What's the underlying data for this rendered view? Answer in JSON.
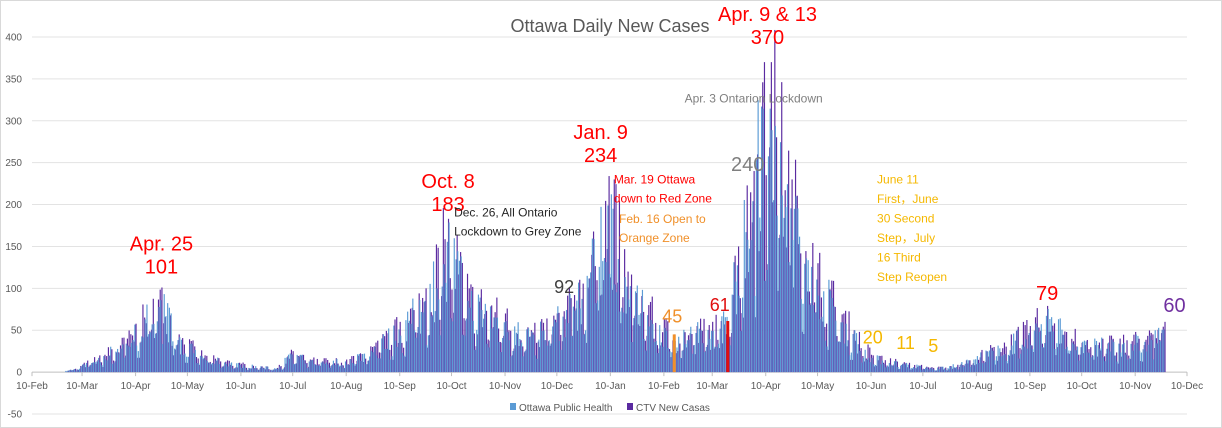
{
  "chart_data": {
    "type": "bar",
    "title": "Ottawa Daily New Cases",
    "ylim": [
      -50,
      400
    ],
    "yticks": [
      -50,
      0,
      50,
      100,
      150,
      200,
      250,
      300,
      350,
      400
    ],
    "xlim": [
      "2020-02-10",
      "2021-12-10"
    ],
    "xtick_labels": [
      "10-Feb",
      "10-Mar",
      "10-Apr",
      "10-May",
      "10-Jun",
      "10-Jul",
      "10-Aug",
      "10-Sep",
      "10-Oct",
      "10-Nov",
      "10-Dec",
      "10-Jan",
      "10-Feb",
      "10-Mar",
      "10-Apr",
      "10-May",
      "10-Jun",
      "10-Jul",
      "10-Aug",
      "10-Sep",
      "10-Oct",
      "10-Nov",
      "10-Dec"
    ],
    "grid": true,
    "legend_position": "bottom",
    "series": [
      {
        "name": "Ottawa Public Health",
        "color": "#5b9bd5"
      },
      {
        "name": "CTV New Casas",
        "color": "#5a2aa0"
      }
    ],
    "anchor_points": [
      {
        "date": "2020-02-10",
        "y": 0
      },
      {
        "date": "2020-03-05",
        "y": 3
      },
      {
        "date": "2020-03-20",
        "y": 20
      },
      {
        "date": "2020-04-05",
        "y": 40
      },
      {
        "date": "2020-04-25",
        "y": 101
      },
      {
        "date": "2020-05-05",
        "y": 45
      },
      {
        "date": "2020-05-20",
        "y": 20
      },
      {
        "date": "2020-06-10",
        "y": 10
      },
      {
        "date": "2020-07-01",
        "y": 5
      },
      {
        "date": "2020-07-10",
        "y": 25
      },
      {
        "date": "2020-07-20",
        "y": 15
      },
      {
        "date": "2020-08-10",
        "y": 15
      },
      {
        "date": "2020-08-25",
        "y": 30
      },
      {
        "date": "2020-09-10",
        "y": 60
      },
      {
        "date": "2020-09-25",
        "y": 100
      },
      {
        "date": "2020-10-08",
        "y": 183
      },
      {
        "date": "2020-10-20",
        "y": 100
      },
      {
        "date": "2020-11-10",
        "y": 70
      },
      {
        "date": "2020-11-25",
        "y": 50
      },
      {
        "date": "2020-12-10",
        "y": 70
      },
      {
        "date": "2020-12-20",
        "y": 92
      },
      {
        "date": "2020-12-30",
        "y": 140
      },
      {
        "date": "2021-01-09",
        "y": 234
      },
      {
        "date": "2021-01-20",
        "y": 120
      },
      {
        "date": "2021-02-01",
        "y": 80
      },
      {
        "date": "2021-02-16",
        "y": 45
      },
      {
        "date": "2021-03-01",
        "y": 55
      },
      {
        "date": "2021-03-15",
        "y": 61
      },
      {
        "date": "2021-03-25",
        "y": 150
      },
      {
        "date": "2021-04-03",
        "y": 240
      },
      {
        "date": "2021-04-09",
        "y": 370
      },
      {
        "date": "2021-04-13",
        "y": 370
      },
      {
        "date": "2021-04-25",
        "y": 230
      },
      {
        "date": "2021-05-10",
        "y": 130
      },
      {
        "date": "2021-05-25",
        "y": 70
      },
      {
        "date": "2021-06-11",
        "y": 20
      },
      {
        "date": "2021-06-30",
        "y": 11
      },
      {
        "date": "2021-07-16",
        "y": 5
      },
      {
        "date": "2021-08-01",
        "y": 10
      },
      {
        "date": "2021-08-20",
        "y": 30
      },
      {
        "date": "2021-09-10",
        "y": 55
      },
      {
        "date": "2021-09-20",
        "y": 79
      },
      {
        "date": "2021-10-10",
        "y": 35
      },
      {
        "date": "2021-11-01",
        "y": 40
      },
      {
        "date": "2021-11-20",
        "y": 45
      },
      {
        "date": "2021-11-27",
        "y": 60
      }
    ],
    "highlight_bars": [
      {
        "date": "2021-02-16",
        "y": 45,
        "color": "#f0902a"
      },
      {
        "date": "2021-03-19",
        "y": 61,
        "color": "#e01010"
      }
    ],
    "annotations": [
      {
        "lines": [
          "Apr. 25",
          "101"
        ],
        "date": "2020-04-25",
        "y": 101,
        "color": "#ff0000",
        "size": 20,
        "align": "middle",
        "dy": -14
      },
      {
        "lines": [
          "Oct. 8",
          "183"
        ],
        "date": "2020-10-08",
        "y": 183,
        "color": "#ff0000",
        "size": 20,
        "align": "middle",
        "dy": -8
      },
      {
        "lines": [
          "Dec. 26, All Ontario",
          "Lockdown to Grey Zone"
        ],
        "date": "2020-10-08",
        "y": 188,
        "color": "#262626",
        "size": 12,
        "align": "start",
        "dx": 6,
        "dy": 2
      },
      {
        "lines": [
          "92"
        ],
        "date": "2020-12-20",
        "y": 92,
        "color": "#404040",
        "size": 18,
        "align": "middle",
        "dx": -10,
        "dy": -2
      },
      {
        "lines": [
          "Jan. 9",
          "234"
        ],
        "date": "2021-01-09",
        "y": 234,
        "color": "#ff0000",
        "size": 20,
        "align": "middle",
        "dx": -8,
        "dy": -14
      },
      {
        "lines": [
          "Mar. 19 Ottawa",
          "down to Red Zone"
        ],
        "date": "2021-01-12",
        "y": 225,
        "color": "#ff0000",
        "size": 12,
        "align": "start",
        "dx": 0,
        "dy": 0
      },
      {
        "lines": [
          "Feb. 16 Open to",
          "Orange Zone"
        ],
        "date": "2021-01-15",
        "y": 178,
        "color": "#f0902a",
        "size": 12,
        "align": "start",
        "dx": 0,
        "dy": 0
      },
      {
        "lines": [
          "45"
        ],
        "date": "2021-02-16",
        "y": 45,
        "color": "#f0902a",
        "size": 18,
        "align": "middle",
        "dx": -2,
        "dy": -12
      },
      {
        "lines": [
          "61"
        ],
        "date": "2021-03-19",
        "y": 61,
        "color": "#e01010",
        "size": 18,
        "align": "middle",
        "dx": -8,
        "dy": -10
      },
      {
        "lines": [
          "240"
        ],
        "date": "2021-04-03",
        "y": 240,
        "color": "#7f7f7f",
        "size": 20,
        "align": "middle",
        "dx": -6,
        "dy": 0
      },
      {
        "lines": [
          "Apr. 3 Ontarion Lockdown"
        ],
        "date": "2021-04-03",
        "y": 322,
        "color": "#7f7f7f",
        "size": 12,
        "align": "middle",
        "dx": 0,
        "dy": 0
      },
      {
        "lines": [
          "Apr. 9 & 13",
          "370"
        ],
        "date": "2021-04-11",
        "y": 370,
        "color": "#ff0000",
        "size": 20,
        "align": "middle",
        "dx": 0,
        "dy": -18
      },
      {
        "lines": [
          "June 11",
          "First，June",
          "30 Second",
          "Step，July",
          "16 Third",
          "Step Reopen"
        ],
        "date": "2021-06-10",
        "y": 225,
        "color": "#f5b800",
        "size": 12,
        "align": "start",
        "dx": 6,
        "dy": 0,
        "line_gap": 19.5
      },
      {
        "lines": [
          "20"
        ],
        "date": "2021-06-11",
        "y": 20,
        "color": "#f5b800",
        "size": 18,
        "align": "middle",
        "dx": 0,
        "dy": -12
      },
      {
        "lines": [
          "11"
        ],
        "date": "2021-06-30",
        "y": 11,
        "color": "#f5b800",
        "size": 18,
        "align": "middle",
        "dx": 0,
        "dy": -14
      },
      {
        "lines": [
          "5"
        ],
        "date": "2021-07-16",
        "y": 5,
        "color": "#f5b800",
        "size": 18,
        "align": "middle",
        "dx": 0,
        "dy": -16
      },
      {
        "lines": [
          "79"
        ],
        "date": "2021-09-20",
        "y": 79,
        "color": "#ff0000",
        "size": 20,
        "align": "middle",
        "dx": 0,
        "dy": -6
      },
      {
        "lines": [
          "60"
        ],
        "date": "2021-11-27",
        "y": 60,
        "color": "#7030a0",
        "size": 20,
        "align": "middle",
        "dx": 10,
        "dy": -10
      }
    ]
  }
}
